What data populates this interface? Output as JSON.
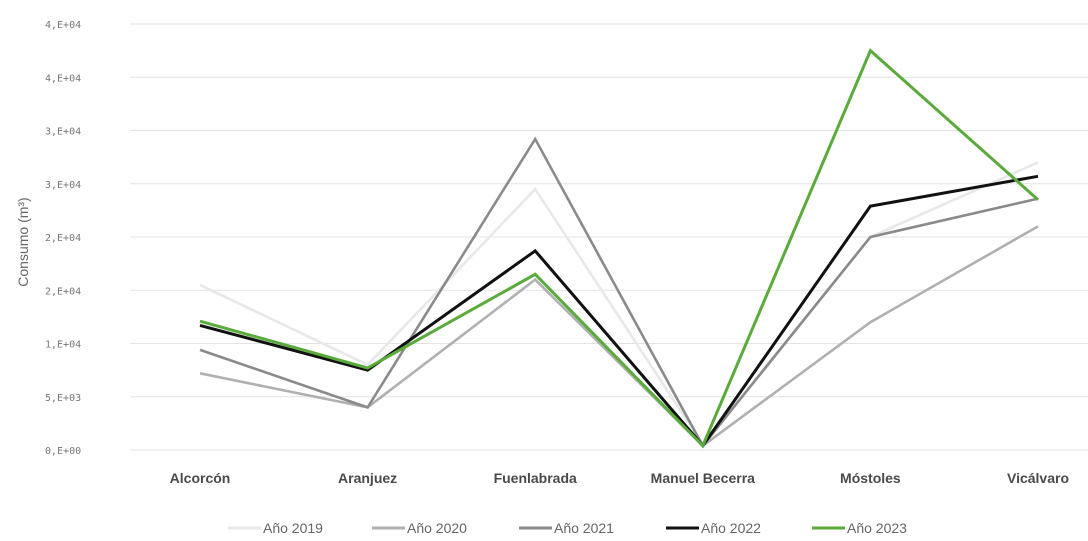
{
  "chart_data": {
    "type": "line",
    "title": "",
    "xlabel": "",
    "ylabel": "Consumo (m³)",
    "categories": [
      "Alcorcón",
      "Aranjuez",
      "Fuenlabrada",
      "Manuel Becerra",
      "Móstoles",
      "Vicálvaro"
    ],
    "ylim": [
      0,
      40000
    ],
    "y_ticks": [
      {
        "value": 0,
        "label": "0,E+00"
      },
      {
        "value": 5000,
        "label": "5,E+03"
      },
      {
        "value": 10000,
        "label": "1,E+04"
      },
      {
        "value": 15000,
        "label": "2,E+04"
      },
      {
        "value": 20000,
        "label": "2,E+04"
      },
      {
        "value": 25000,
        "label": "3,E+04"
      },
      {
        "value": 30000,
        "label": "3,E+04"
      },
      {
        "value": 35000,
        "label": "4,E+04"
      },
      {
        "value": 40000,
        "label": "4,E+04"
      }
    ],
    "grid": true,
    "legend_position": "bottom",
    "series": [
      {
        "name": "Año 2019",
        "color": "#e8e8e8",
        "values": [
          15500,
          8000,
          24500,
          500,
          20000,
          27000
        ]
      },
      {
        "name": "Año 2020",
        "color": "#b0b0b0",
        "values": [
          7200,
          4000,
          16000,
          400,
          12000,
          21000
        ]
      },
      {
        "name": "Año 2021",
        "color": "#8a8a8a",
        "values": [
          9400,
          4000,
          29200,
          400,
          20000,
          23600
        ]
      },
      {
        "name": "Año 2022",
        "color": "#111111",
        "values": [
          11700,
          7500,
          18700,
          400,
          22900,
          25700
        ]
      },
      {
        "name": "Año 2023",
        "color": "#5aab3c",
        "values": [
          12100,
          7700,
          16500,
          400,
          37500,
          23500
        ]
      }
    ]
  }
}
